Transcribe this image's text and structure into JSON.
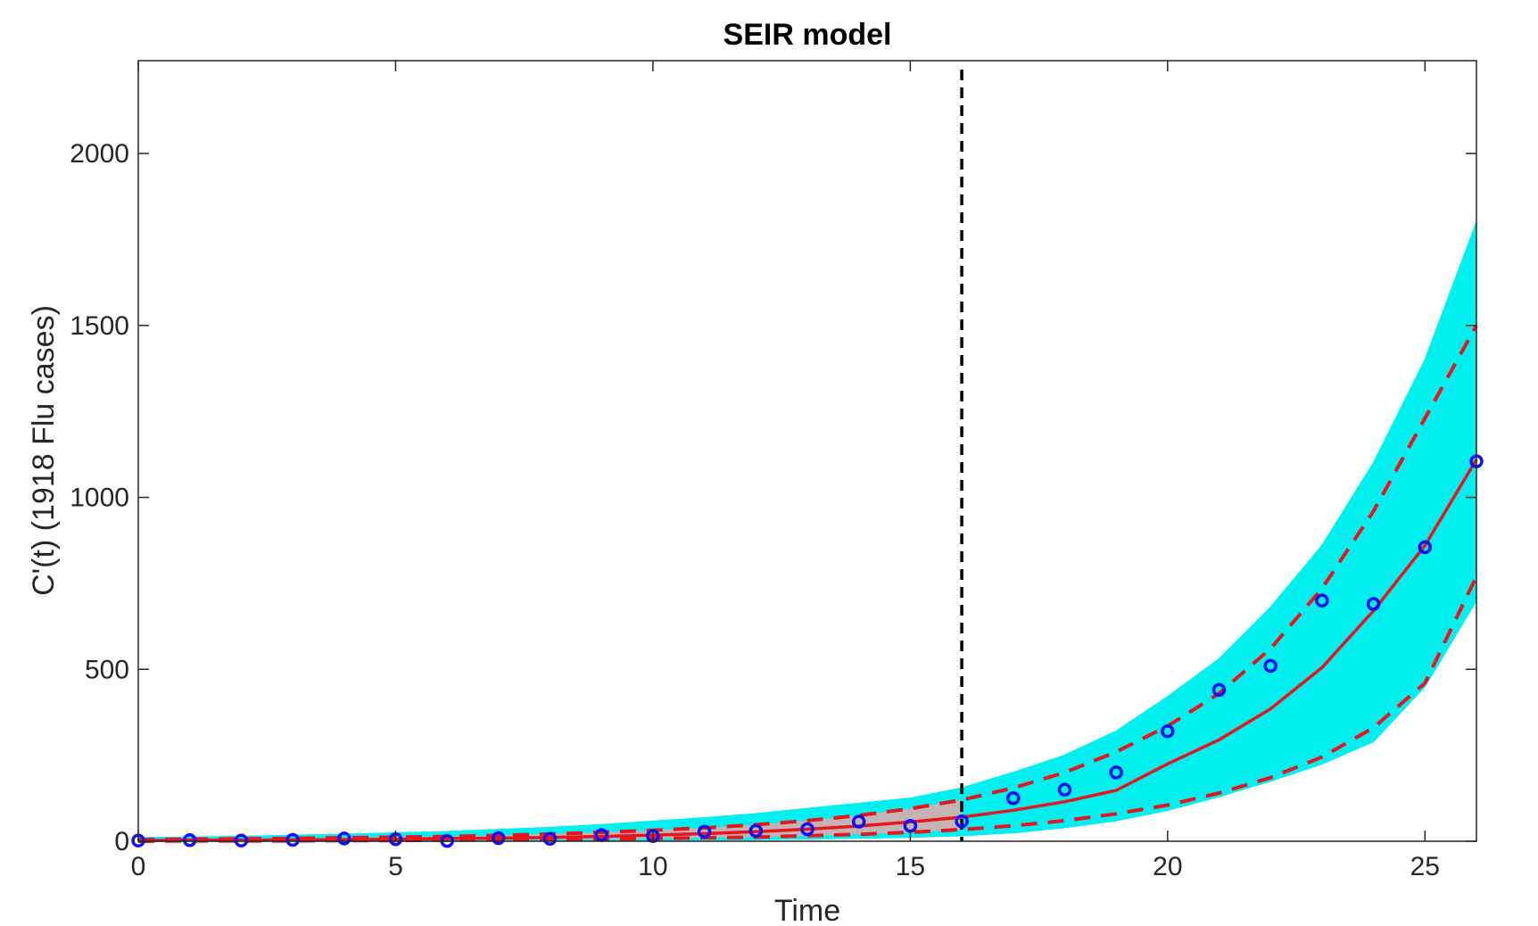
{
  "chart_data": {
    "type": "line",
    "title": "SEIR model",
    "xlabel": "Time",
    "ylabel": "C'(t) (1918 Flu cases)",
    "xlim": [
      0,
      26
    ],
    "ylim": [
      0,
      2270
    ],
    "xticks": [
      0,
      5,
      10,
      15,
      20,
      25
    ],
    "yticks": [
      0,
      500,
      1000,
      1500,
      2000
    ],
    "grid": false,
    "vertical_marker": {
      "x": 16,
      "style": "dashed",
      "color": "#000000"
    },
    "colors": {
      "ensemble": "#00f0f0",
      "mean": "#e8141e",
      "band_fill": "#e6a8a8",
      "observed": "#1010f0"
    },
    "x": [
      0,
      1,
      2,
      3,
      4,
      5,
      6,
      7,
      8,
      9,
      10,
      11,
      12,
      13,
      14,
      15,
      16,
      17,
      18,
      19,
      20,
      21,
      22,
      23,
      24,
      25,
      26
    ],
    "series": [
      {
        "role": "mean",
        "style": "solid",
        "values": [
          2,
          3,
          3,
          4,
          5,
          6,
          8,
          9,
          11,
          14,
          18,
          22,
          28,
          35,
          44,
          56,
          70,
          90,
          115,
          148,
          225,
          295,
          385,
          505,
          670,
          860,
          1110
        ]
      },
      {
        "role": "upper bound",
        "style": "dashed",
        "values": [
          5,
          6,
          7,
          8,
          10,
          12,
          14,
          17,
          21,
          26,
          32,
          39,
          48,
          60,
          75,
          95,
          120,
          155,
          200,
          260,
          335,
          430,
          560,
          735,
          960,
          1230,
          1500
        ]
      },
      {
        "role": "lower bound",
        "style": "dashed",
        "values": [
          0,
          1,
          1,
          1,
          2,
          2,
          3,
          4,
          5,
          6,
          8,
          10,
          12,
          16,
          20,
          26,
          34,
          45,
          60,
          80,
          105,
          140,
          185,
          245,
          330,
          460,
          770
        ]
      },
      {
        "role": "ensemble max",
        "values": [
          10,
          12,
          14,
          17,
          20,
          24,
          28,
          34,
          40,
          48,
          58,
          68,
          80,
          95,
          110,
          125,
          155,
          200,
          250,
          320,
          420,
          530,
          680,
          860,
          1100,
          1400,
          1800
        ]
      },
      {
        "role": "ensemble min",
        "values": [
          0,
          0,
          0,
          0,
          0,
          0,
          0,
          1,
          1,
          2,
          3,
          4,
          5,
          7,
          9,
          12,
          16,
          25,
          40,
          60,
          90,
          130,
          175,
          225,
          290,
          450,
          700
        ]
      },
      {
        "role": "observed",
        "marker": "circle",
        "values": [
          2,
          3,
          2,
          4,
          8,
          6,
          1,
          9,
          7,
          18,
          15,
          28,
          30,
          35,
          57,
          45,
          58,
          125,
          150,
          200,
          320,
          440,
          510,
          700,
          690,
          855,
          1105
        ]
      }
    ]
  }
}
